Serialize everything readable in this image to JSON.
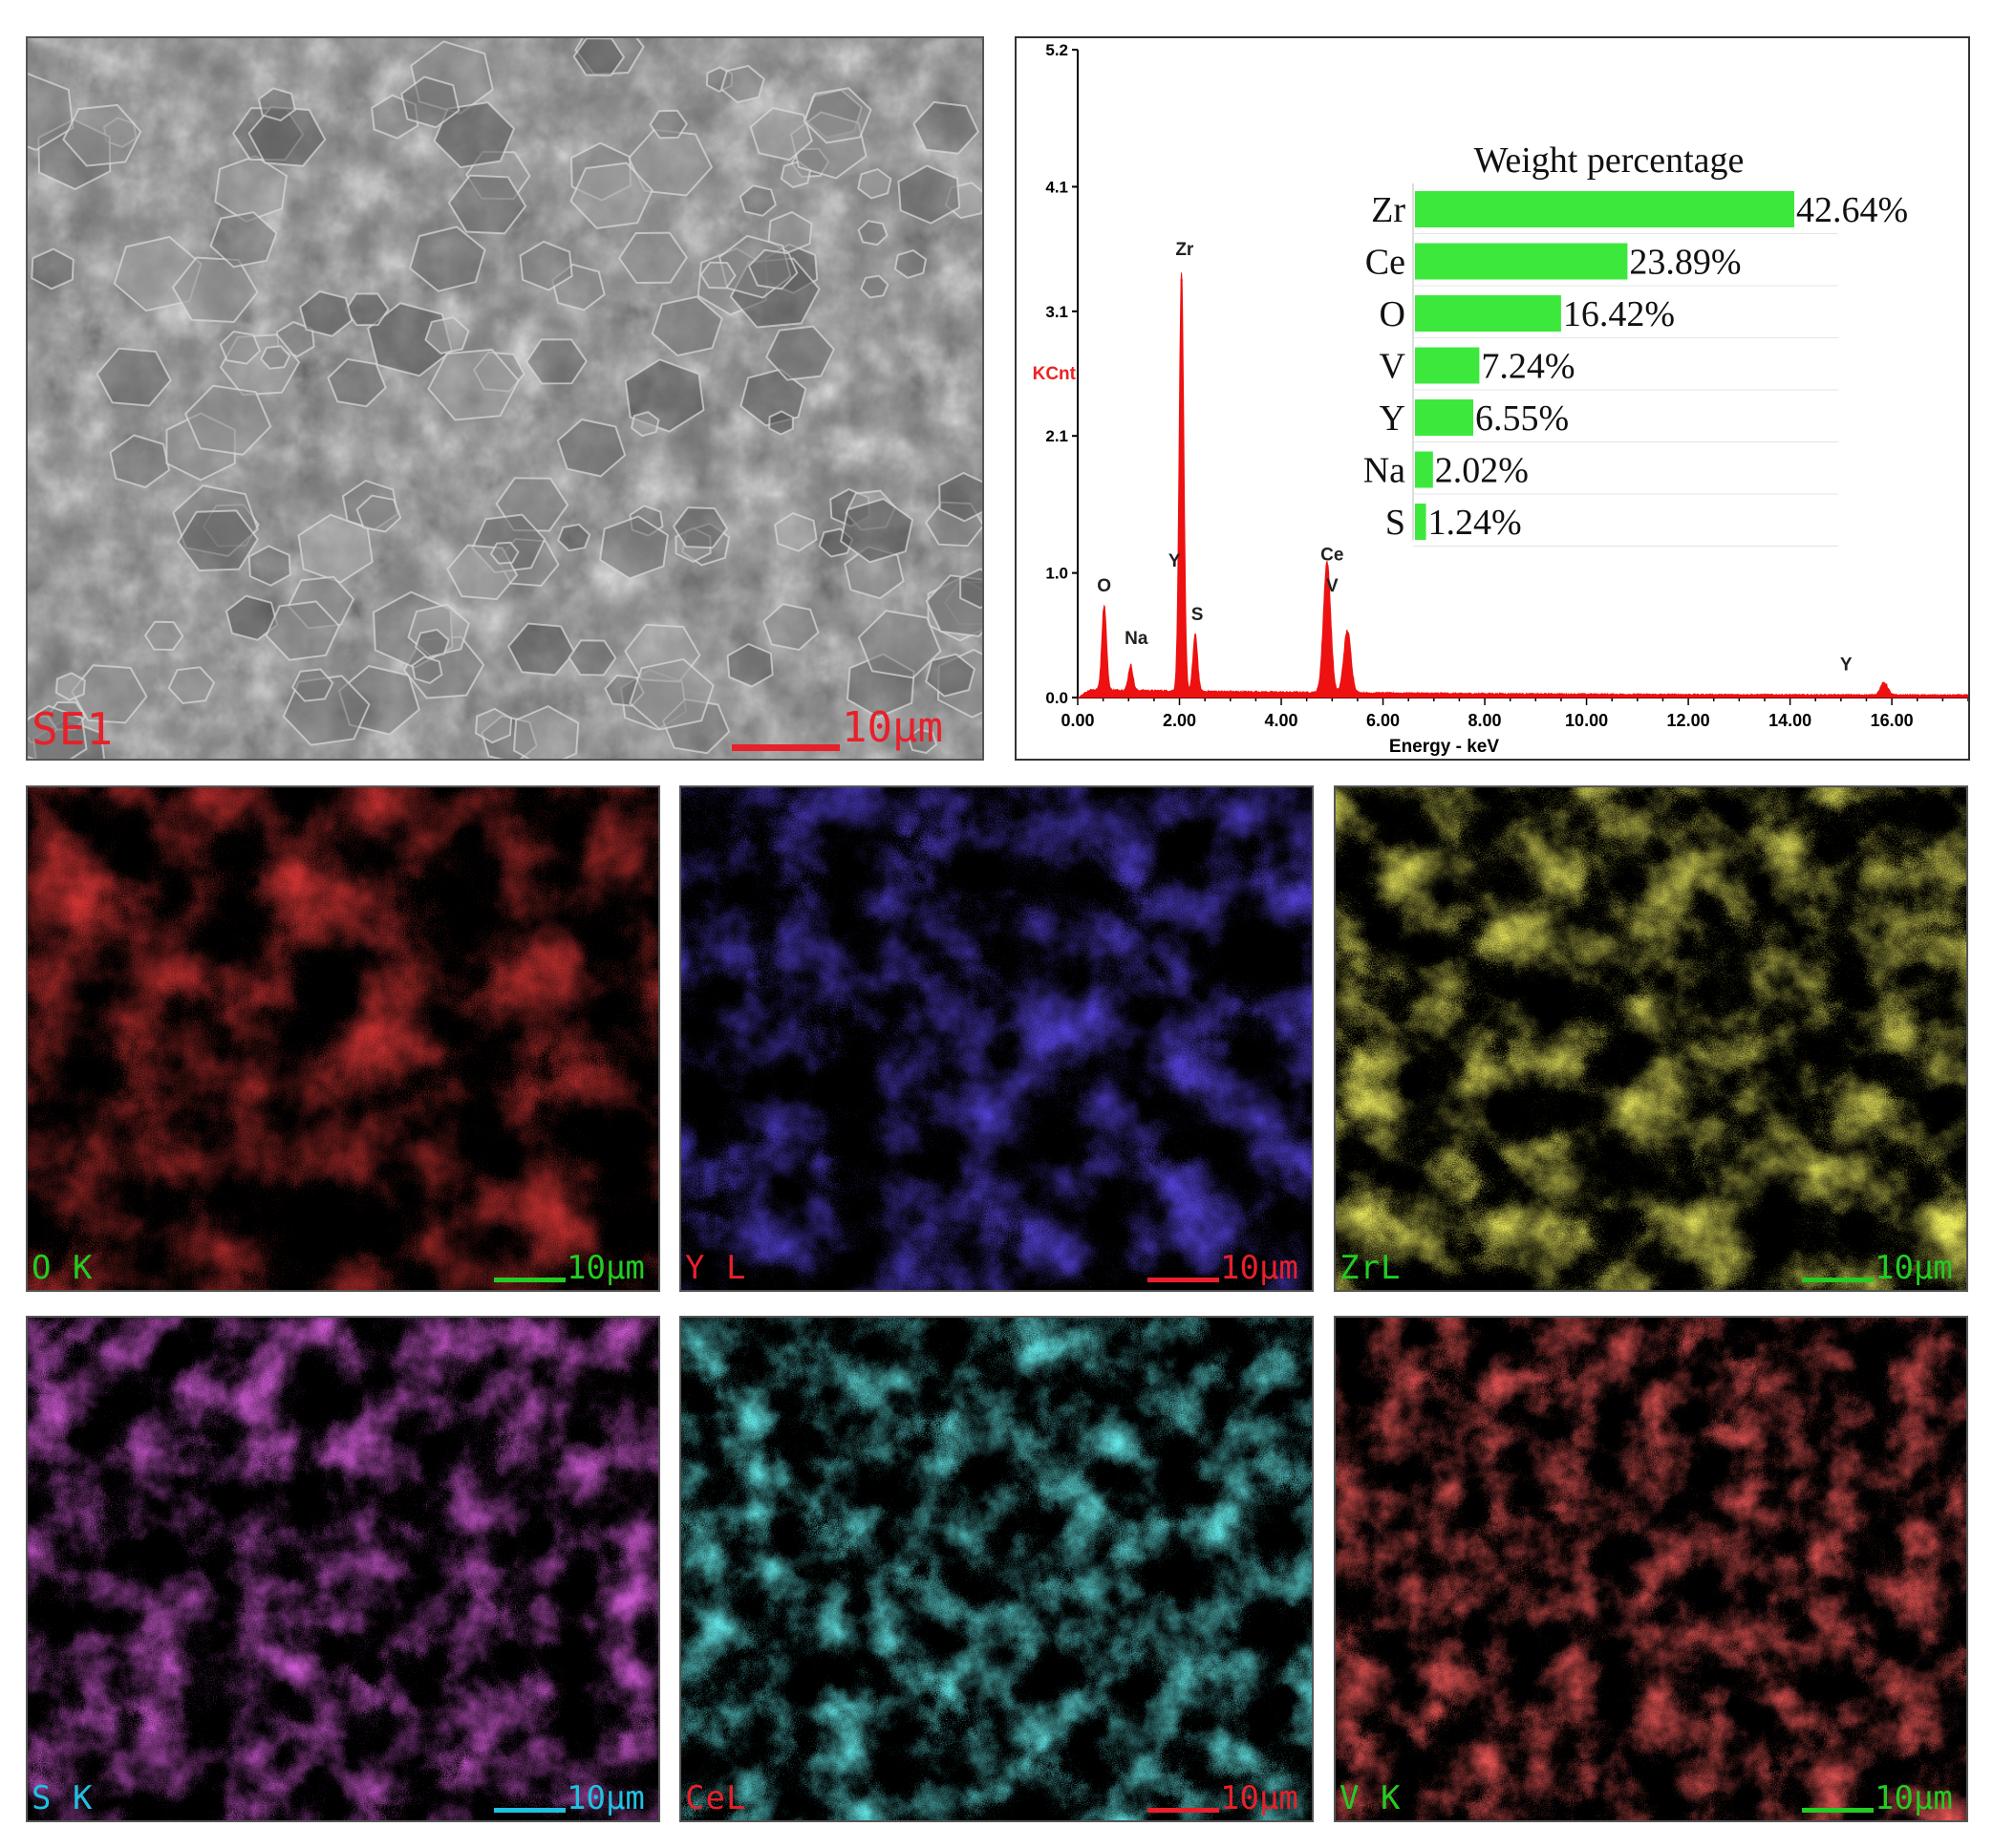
{
  "sem": {
    "label": "SE1",
    "scale_text": "10μm",
    "label_color": "#e8202a",
    "scale_color": "#e8202a"
  },
  "maps": [
    {
      "label": "O K",
      "scale_text": "10μm",
      "base": "#9a0808",
      "label_color": "#22cc22",
      "scale_color": "#22cc22"
    },
    {
      "label": "Y L",
      "scale_text": "10μm",
      "base": "#1a10d0",
      "label_color": "#e8202a",
      "scale_color": "#e8202a"
    },
    {
      "label": "ZrL",
      "scale_text": "10μm",
      "base": "#d8d41c",
      "label_color": "#22cc22",
      "scale_color": "#22cc22"
    },
    {
      "label": "S K",
      "scale_text": "10μm",
      "base": "#a01aa8",
      "label_color": "#20c0e0",
      "scale_color": "#20c0e0"
    },
    {
      "label": "CeL",
      "scale_text": "10μm",
      "base": "#20c8c8",
      "label_color": "#e8202a",
      "scale_color": "#e8202a"
    },
    {
      "label": "V K",
      "scale_text": "10μm",
      "base": "#d81818",
      "label_color": "#22cc22",
      "scale_color": "#22cc22"
    }
  ],
  "chart_data": [
    {
      "type": "line",
      "xlabel": "Energy - keV",
      "ylabel": "KCnt",
      "xlim": [
        0,
        17.5
      ],
      "ylim": [
        0,
        5.2
      ],
      "x_ticks": [
        "0.00",
        "2.00",
        "4.00",
        "6.00",
        "8.00",
        "10.00",
        "12.00",
        "14.00",
        "16.00"
      ],
      "y_ticks": [
        "0.0",
        "1.0",
        "2.1",
        "3.1",
        "4.1",
        "5.2"
      ],
      "line_color": "#ee1111",
      "peaks": [
        {
          "x": 0.52,
          "y": 0.68
        },
        {
          "x": 1.04,
          "y": 0.2
        },
        {
          "x": 2.04,
          "y": 3.35
        },
        {
          "x": 2.31,
          "y": 0.45
        },
        {
          "x": 4.9,
          "y": 1.05
        },
        {
          "x": 5.3,
          "y": 0.5
        },
        {
          "x": 15.85,
          "y": 0.1
        }
      ],
      "peak_labels": [
        {
          "text": "O",
          "x": 0.52,
          "y": 0.85
        },
        {
          "text": "Na",
          "x": 1.15,
          "y": 0.43
        },
        {
          "text": "Zr",
          "x": 2.1,
          "y": 3.55
        },
        {
          "text": "Y",
          "x": 1.9,
          "y": 1.05
        },
        {
          "text": "S",
          "x": 2.35,
          "y": 0.62
        },
        {
          "text": "Ce",
          "x": 5.0,
          "y": 1.1
        },
        {
          "text": "V",
          "x": 5.0,
          "y": 0.85
        },
        {
          "text": "Y",
          "x": 15.1,
          "y": 0.22
        }
      ]
    },
    {
      "type": "bar",
      "orientation": "horizontal",
      "title": "Weight percentage",
      "categories": [
        "Zr",
        "Ce",
        "O",
        "V",
        "Y",
        "Na",
        "S"
      ],
      "values": [
        42.64,
        23.89,
        16.42,
        7.24,
        6.55,
        2.02,
        1.24
      ],
      "value_labels": [
        "42.64%",
        "23.89%",
        "16.42%",
        "7.24%",
        "6.55%",
        "2.02%",
        "1.24%"
      ],
      "bar_color": "#3de83d"
    }
  ]
}
